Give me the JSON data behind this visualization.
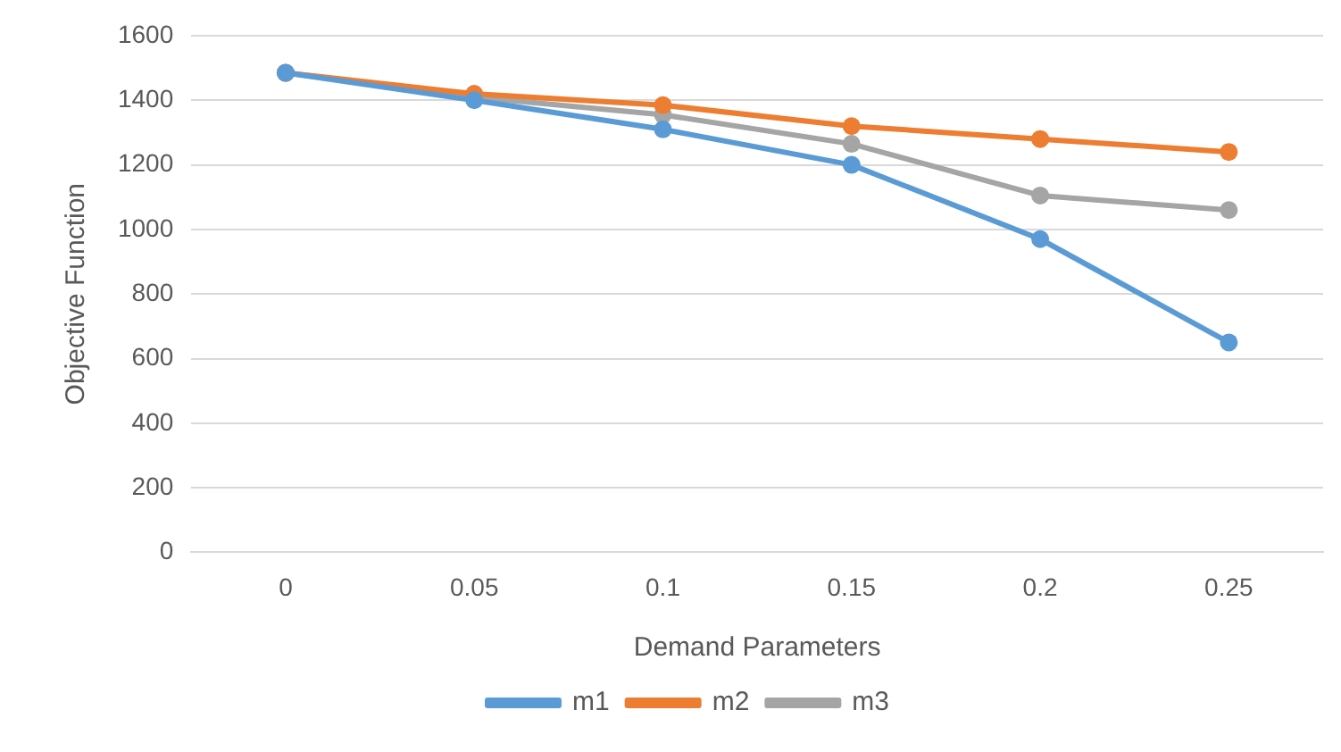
{
  "chart_data": {
    "type": "line",
    "xlabel": "Demand Parameters",
    "ylabel": "Objective Function",
    "categories": [
      "0",
      "0.05",
      "0.1",
      "0.15",
      "0.2",
      "0.25"
    ],
    "series": [
      {
        "name": "m1",
        "color": "#5b9bd5",
        "values": [
          1485,
          1400,
          1310,
          1200,
          970,
          650
        ]
      },
      {
        "name": "m2",
        "color": "#ed7d31",
        "values": [
          1485,
          1420,
          1385,
          1320,
          1280,
          1240
        ]
      },
      {
        "name": "m3",
        "color": "#a5a5a5",
        "values": [
          1485,
          1410,
          1355,
          1265,
          1105,
          1060
        ]
      }
    ],
    "ylim": [
      0,
      1600
    ],
    "yticks": [
      0,
      200,
      400,
      600,
      800,
      1000,
      1200,
      1400,
      1600
    ],
    "grid": "y",
    "legend": "bottom",
    "marker": "circle",
    "line_style": "solid"
  }
}
